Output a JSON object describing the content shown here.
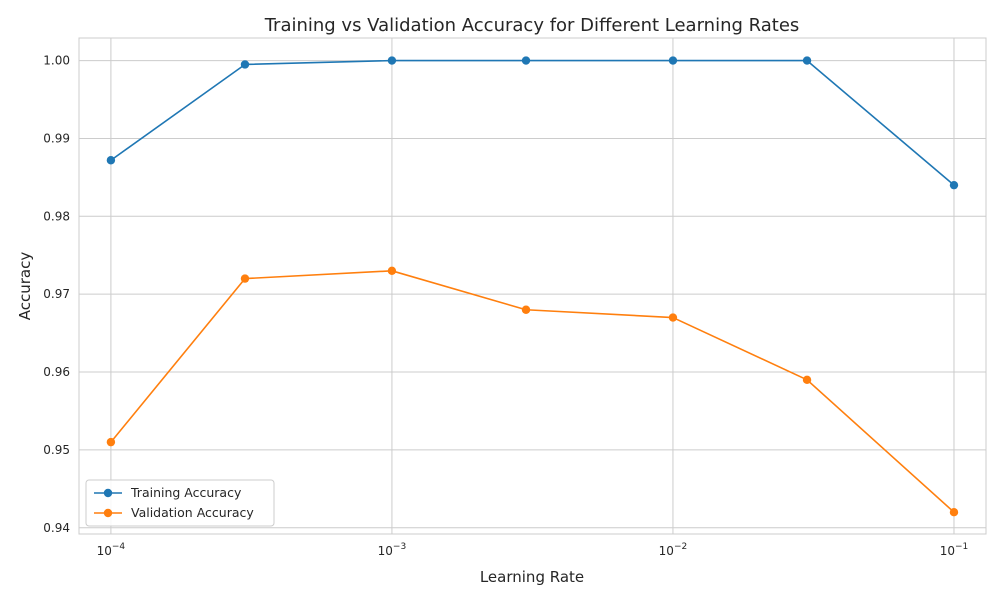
{
  "chart_data": {
    "type": "line",
    "title": "Training vs Validation Accuracy for Different Learning Rates",
    "xlabel": "Learning Rate",
    "ylabel": "Accuracy",
    "xscale": "log",
    "grid": true,
    "legend_position": "lower-left",
    "x": [
      0.0001,
      0.0003,
      0.001,
      0.003,
      0.01,
      0.03,
      0.1
    ],
    "xlim": [
      7.7e-05,
      0.13
    ],
    "ylim": [
      0.9392,
      1.0029
    ],
    "x_ticks": [
      {
        "value": 0.0001,
        "base": "10",
        "exp": "−4"
      },
      {
        "value": 0.001,
        "base": "10",
        "exp": "−3"
      },
      {
        "value": 0.01,
        "base": "10",
        "exp": "−2"
      },
      {
        "value": 0.1,
        "base": "10",
        "exp": "−1"
      }
    ],
    "y_ticks": [
      0.94,
      0.95,
      0.96,
      0.97,
      0.98,
      0.99,
      1.0
    ],
    "y_tick_labels": [
      "0.94",
      "0.95",
      "0.96",
      "0.97",
      "0.98",
      "0.99",
      "1.00"
    ],
    "series": [
      {
        "name": "Training Accuracy",
        "color": "#1f77b4",
        "values": [
          0.9872,
          0.9995,
          1.0,
          1.0,
          1.0,
          1.0,
          0.984
        ]
      },
      {
        "name": "Validation Accuracy",
        "color": "#ff7f0e",
        "values": [
          0.951,
          0.972,
          0.973,
          0.968,
          0.967,
          0.959,
          0.942
        ]
      }
    ]
  }
}
